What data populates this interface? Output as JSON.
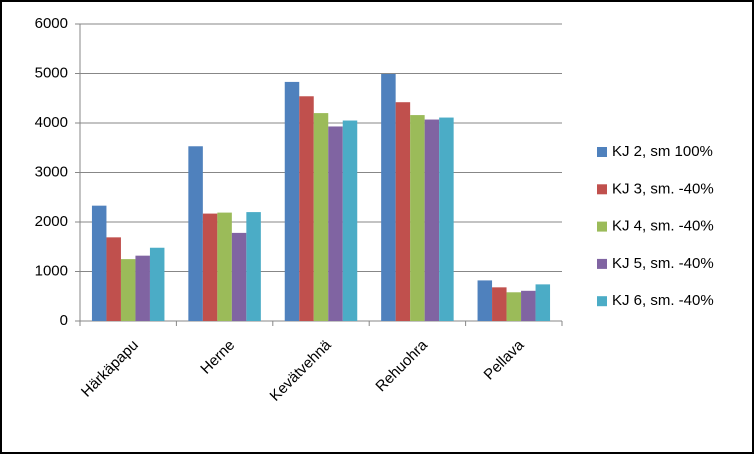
{
  "chart_data": {
    "type": "bar",
    "categories": [
      "Härkäpapu",
      "Herne",
      "Kevätvehnä",
      "Rehuohra",
      "Pellava"
    ],
    "series": [
      {
        "name": "KJ 2, sm 100%",
        "color": "#4f81bd",
        "values": [
          2330,
          3530,
          4830,
          4990,
          820
        ]
      },
      {
        "name": "KJ 3, sm. -40%",
        "color": "#c0504d",
        "values": [
          1690,
          2170,
          4540,
          4420,
          680
        ]
      },
      {
        "name": "KJ 4, sm. -40%",
        "color": "#9bbb59",
        "values": [
          1250,
          2190,
          4200,
          4160,
          580
        ]
      },
      {
        "name": "KJ 5, sm. -40%",
        "color": "#8064a2",
        "values": [
          1320,
          1780,
          3930,
          4070,
          610
        ]
      },
      {
        "name": "KJ 6, sm. -40%",
        "color": "#4bacc6",
        "values": [
          1480,
          2200,
          4050,
          4110,
          740
        ]
      }
    ],
    "ylim": [
      0,
      6000
    ],
    "yticks": [
      0,
      1000,
      2000,
      3000,
      4000,
      5000,
      6000
    ],
    "grid": true,
    "legend": "right"
  }
}
